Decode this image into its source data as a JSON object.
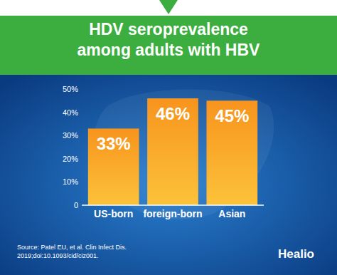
{
  "chart_data": {
    "type": "bar",
    "title": "HDV seroprevalence among adults with HBV",
    "categories": [
      "US-born",
      "foreign-born",
      "Asian"
    ],
    "values": [
      33,
      46,
      45
    ],
    "value_labels": [
      "33%",
      "46%",
      "45%"
    ],
    "color": "#f7941d",
    "ylim": [
      0,
      50
    ],
    "yticks": [
      0,
      {
        "value": 10,
        "label": "10%"
      },
      {
        "value": 20,
        "label": "20%"
      },
      {
        "value": 30,
        "label": "30%"
      },
      {
        "value": 40,
        "label": "40%"
      },
      {
        "value": 50,
        "label": "50%"
      }
    ],
    "grid": false,
    "data_labels": true,
    "source": [
      "Source: Patel EU, et al. Clin Infect Dis.",
      "2019;doi:10.1093/cid/ciz001."
    ],
    "logo": "Healio"
  }
}
